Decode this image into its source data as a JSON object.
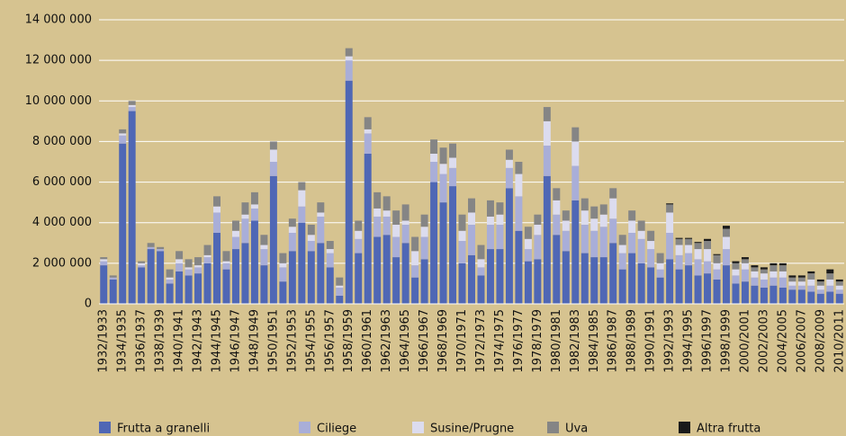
{
  "chart_data": {
    "type": "stacked_bar",
    "categories": [
      "1932/1933",
      null,
      "1934/1935",
      null,
      "1936/1937",
      null,
      "1938/1939",
      null,
      "1940/1941",
      null,
      "1942/1943",
      null,
      "1944/1945",
      null,
      "1946/1947",
      null,
      "1948/1949",
      null,
      "1950/1951",
      null,
      "1952/1953",
      null,
      "1954/1955",
      null,
      "1956/1957",
      null,
      "1958/1959",
      null,
      "1960/1961",
      null,
      "1962/1963",
      null,
      "1964/1965",
      null,
      "1966/1967",
      null,
      "1968/1969",
      null,
      "1970/1971",
      null,
      "1972/1973",
      null,
      "1974/1975",
      null,
      "1976/1977",
      null,
      "1978/1979",
      null,
      "1980/1981",
      null,
      "1982/1983",
      null,
      "1984/1985",
      null,
      "1986/1987",
      null,
      "1988/1989",
      null,
      "1990/1991",
      null,
      "1992/1993",
      null,
      "1994/1995",
      null,
      "1996/1997",
      null,
      "1998/1999",
      null,
      "2000/2001",
      null,
      "2002/2003",
      null,
      "2004/2005",
      null,
      "2006/2007",
      null,
      "2008/2009",
      null,
      "2010/2011"
    ],
    "series": [
      {
        "name": "Frutta a granelli",
        "color": "#4f67b5",
        "values": [
          1900000,
          1200000,
          7900000,
          9500000,
          1800000,
          2700000,
          2600000,
          1000000,
          1600000,
          1400000,
          1500000,
          2000000,
          3500000,
          1700000,
          2700000,
          3000000,
          4100000,
          1900000,
          6300000,
          1100000,
          2600000,
          4000000,
          2600000,
          3000000,
          1800000,
          400000,
          11000000,
          2500000,
          7400000,
          3300000,
          3400000,
          2300000,
          3000000,
          1300000,
          2200000,
          6000000,
          5000000,
          5800000,
          2000000,
          2400000,
          1400000,
          2700000,
          2700000,
          5700000,
          3600000,
          2100000,
          2200000,
          6300000,
          3400000,
          2600000,
          5100000,
          2500000,
          2300000,
          2300000,
          3000000,
          1700000,
          2500000,
          2000000,
          1800000,
          1300000,
          2200000,
          1700000,
          1900000,
          1400000,
          1500000,
          1200000,
          1900000,
          1000000,
          1100000,
          900000,
          800000,
          900000,
          800000,
          700000,
          700000,
          600000,
          500000,
          600000,
          500000
        ]
      },
      {
        "name": "Ciliege",
        "color": "#a9aed8",
        "values": [
          200000,
          100000,
          400000,
          200000,
          100000,
          100000,
          100000,
          200000,
          400000,
          300000,
          300000,
          300000,
          1000000,
          300000,
          600000,
          1200000,
          600000,
          800000,
          700000,
          700000,
          900000,
          800000,
          500000,
          1300000,
          700000,
          400000,
          1000000,
          700000,
          1000000,
          1000000,
          900000,
          1000000,
          900000,
          600000,
          1100000,
          1000000,
          1400000,
          900000,
          1100000,
          1500000,
          400000,
          1200000,
          1200000,
          1000000,
          1700000,
          600000,
          1200000,
          1500000,
          1000000,
          1000000,
          1700000,
          1400000,
          1300000,
          1500000,
          1200000,
          800000,
          1000000,
          1200000,
          900000,
          400000,
          1300000,
          700000,
          600000,
          800000,
          600000,
          500000,
          800000,
          400000,
          600000,
          400000,
          400000,
          400000,
          500000,
          200000,
          200000,
          300000,
          200000,
          300000,
          200000
        ]
      },
      {
        "name": "Susine/Prugne",
        "color": "#dcdcef",
        "values": [
          100000,
          0,
          100000,
          100000,
          100000,
          0,
          0,
          100000,
          200000,
          100000,
          100000,
          100000,
          300000,
          100000,
          300000,
          200000,
          200000,
          200000,
          600000,
          200000,
          300000,
          800000,
          300000,
          200000,
          200000,
          100000,
          200000,
          400000,
          200000,
          400000,
          300000,
          600000,
          200000,
          700000,
          500000,
          400000,
          500000,
          500000,
          500000,
          600000,
          400000,
          400000,
          500000,
          400000,
          1100000,
          500000,
          500000,
          1200000,
          700000,
          500000,
          1200000,
          700000,
          600000,
          600000,
          1000000,
          400000,
          600000,
          400000,
          400000,
          300000,
          1000000,
          500000,
          400000,
          500000,
          600000,
          300000,
          600000,
          300000,
          300000,
          300000,
          300000,
          300000,
          300000,
          200000,
          200000,
          300000,
          200000,
          300000,
          200000
        ]
      },
      {
        "name": "Uva",
        "color": "#858585",
        "values": [
          100000,
          100000,
          200000,
          200000,
          100000,
          200000,
          100000,
          400000,
          400000,
          400000,
          400000,
          500000,
          500000,
          500000,
          500000,
          600000,
          600000,
          500000,
          400000,
          500000,
          400000,
          400000,
          500000,
          500000,
          400000,
          400000,
          400000,
          500000,
          600000,
          800000,
          700000,
          700000,
          800000,
          700000,
          600000,
          700000,
          800000,
          700000,
          800000,
          700000,
          700000,
          800000,
          600000,
          500000,
          600000,
          600000,
          500000,
          700000,
          600000,
          500000,
          700000,
          600000,
          600000,
          500000,
          500000,
          500000,
          500000,
          500000,
          500000,
          500000,
          400000,
          300000,
          300000,
          300000,
          400000,
          400000,
          400000,
          300000,
          200000,
          200000,
          200000,
          300000,
          300000,
          200000,
          200000,
          300000,
          200000,
          300000,
          200000
        ]
      },
      {
        "name": "Altra frutta",
        "color": "#1a1a1a",
        "values": [
          0,
          0,
          0,
          0,
          0,
          0,
          0,
          0,
          0,
          0,
          0,
          0,
          0,
          0,
          0,
          0,
          0,
          0,
          0,
          0,
          0,
          0,
          0,
          0,
          0,
          0,
          0,
          0,
          0,
          0,
          0,
          0,
          0,
          0,
          0,
          0,
          0,
          0,
          0,
          0,
          0,
          0,
          0,
          0,
          0,
          0,
          0,
          0,
          0,
          0,
          0,
          0,
          0,
          0,
          0,
          0,
          0,
          0,
          0,
          0,
          50000,
          50000,
          50000,
          50000,
          100000,
          50000,
          150000,
          100000,
          100000,
          100000,
          100000,
          100000,
          100000,
          100000,
          100000,
          100000,
          100000,
          200000,
          100000
        ]
      }
    ],
    "ylim": [
      0,
      14000000
    ],
    "yticks": [
      0,
      {
        "value": 2000000,
        "label": "2 000 000"
      },
      {
        "value": 4000000,
        "label": "4 000 000"
      },
      {
        "value": 6000000,
        "label": "6 000 000"
      },
      {
        "value": 8000000,
        "label": "8 000 000"
      },
      {
        "value": 10000000,
        "label": "10 000 000"
      },
      {
        "value": 12000000,
        "label": "12 000 000"
      },
      {
        "value": 14000000,
        "label": "14 000 000"
      }
    ],
    "grid": true,
    "legend": "bottom"
  }
}
